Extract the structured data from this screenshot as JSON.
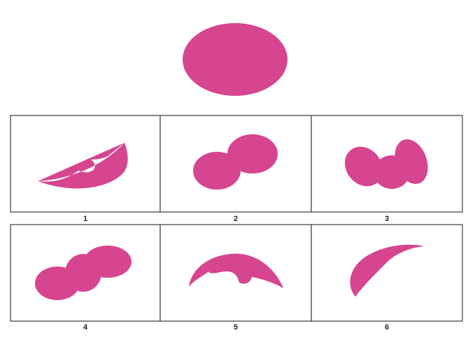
{
  "puzzle": {
    "shape_color": "#d6458f",
    "target_shape": "ellipse",
    "options": [
      {
        "label": "1",
        "shape": "crescent-with-bites"
      },
      {
        "label": "2",
        "shape": "two-overlapping-ellipses"
      },
      {
        "label": "3",
        "shape": "three-overlapping-ellipses"
      },
      {
        "label": "4",
        "shape": "three-overlapping-ellipses-rotated"
      },
      {
        "label": "5",
        "shape": "bat-wing-arc"
      },
      {
        "label": "6",
        "shape": "curved-horn"
      }
    ]
  }
}
